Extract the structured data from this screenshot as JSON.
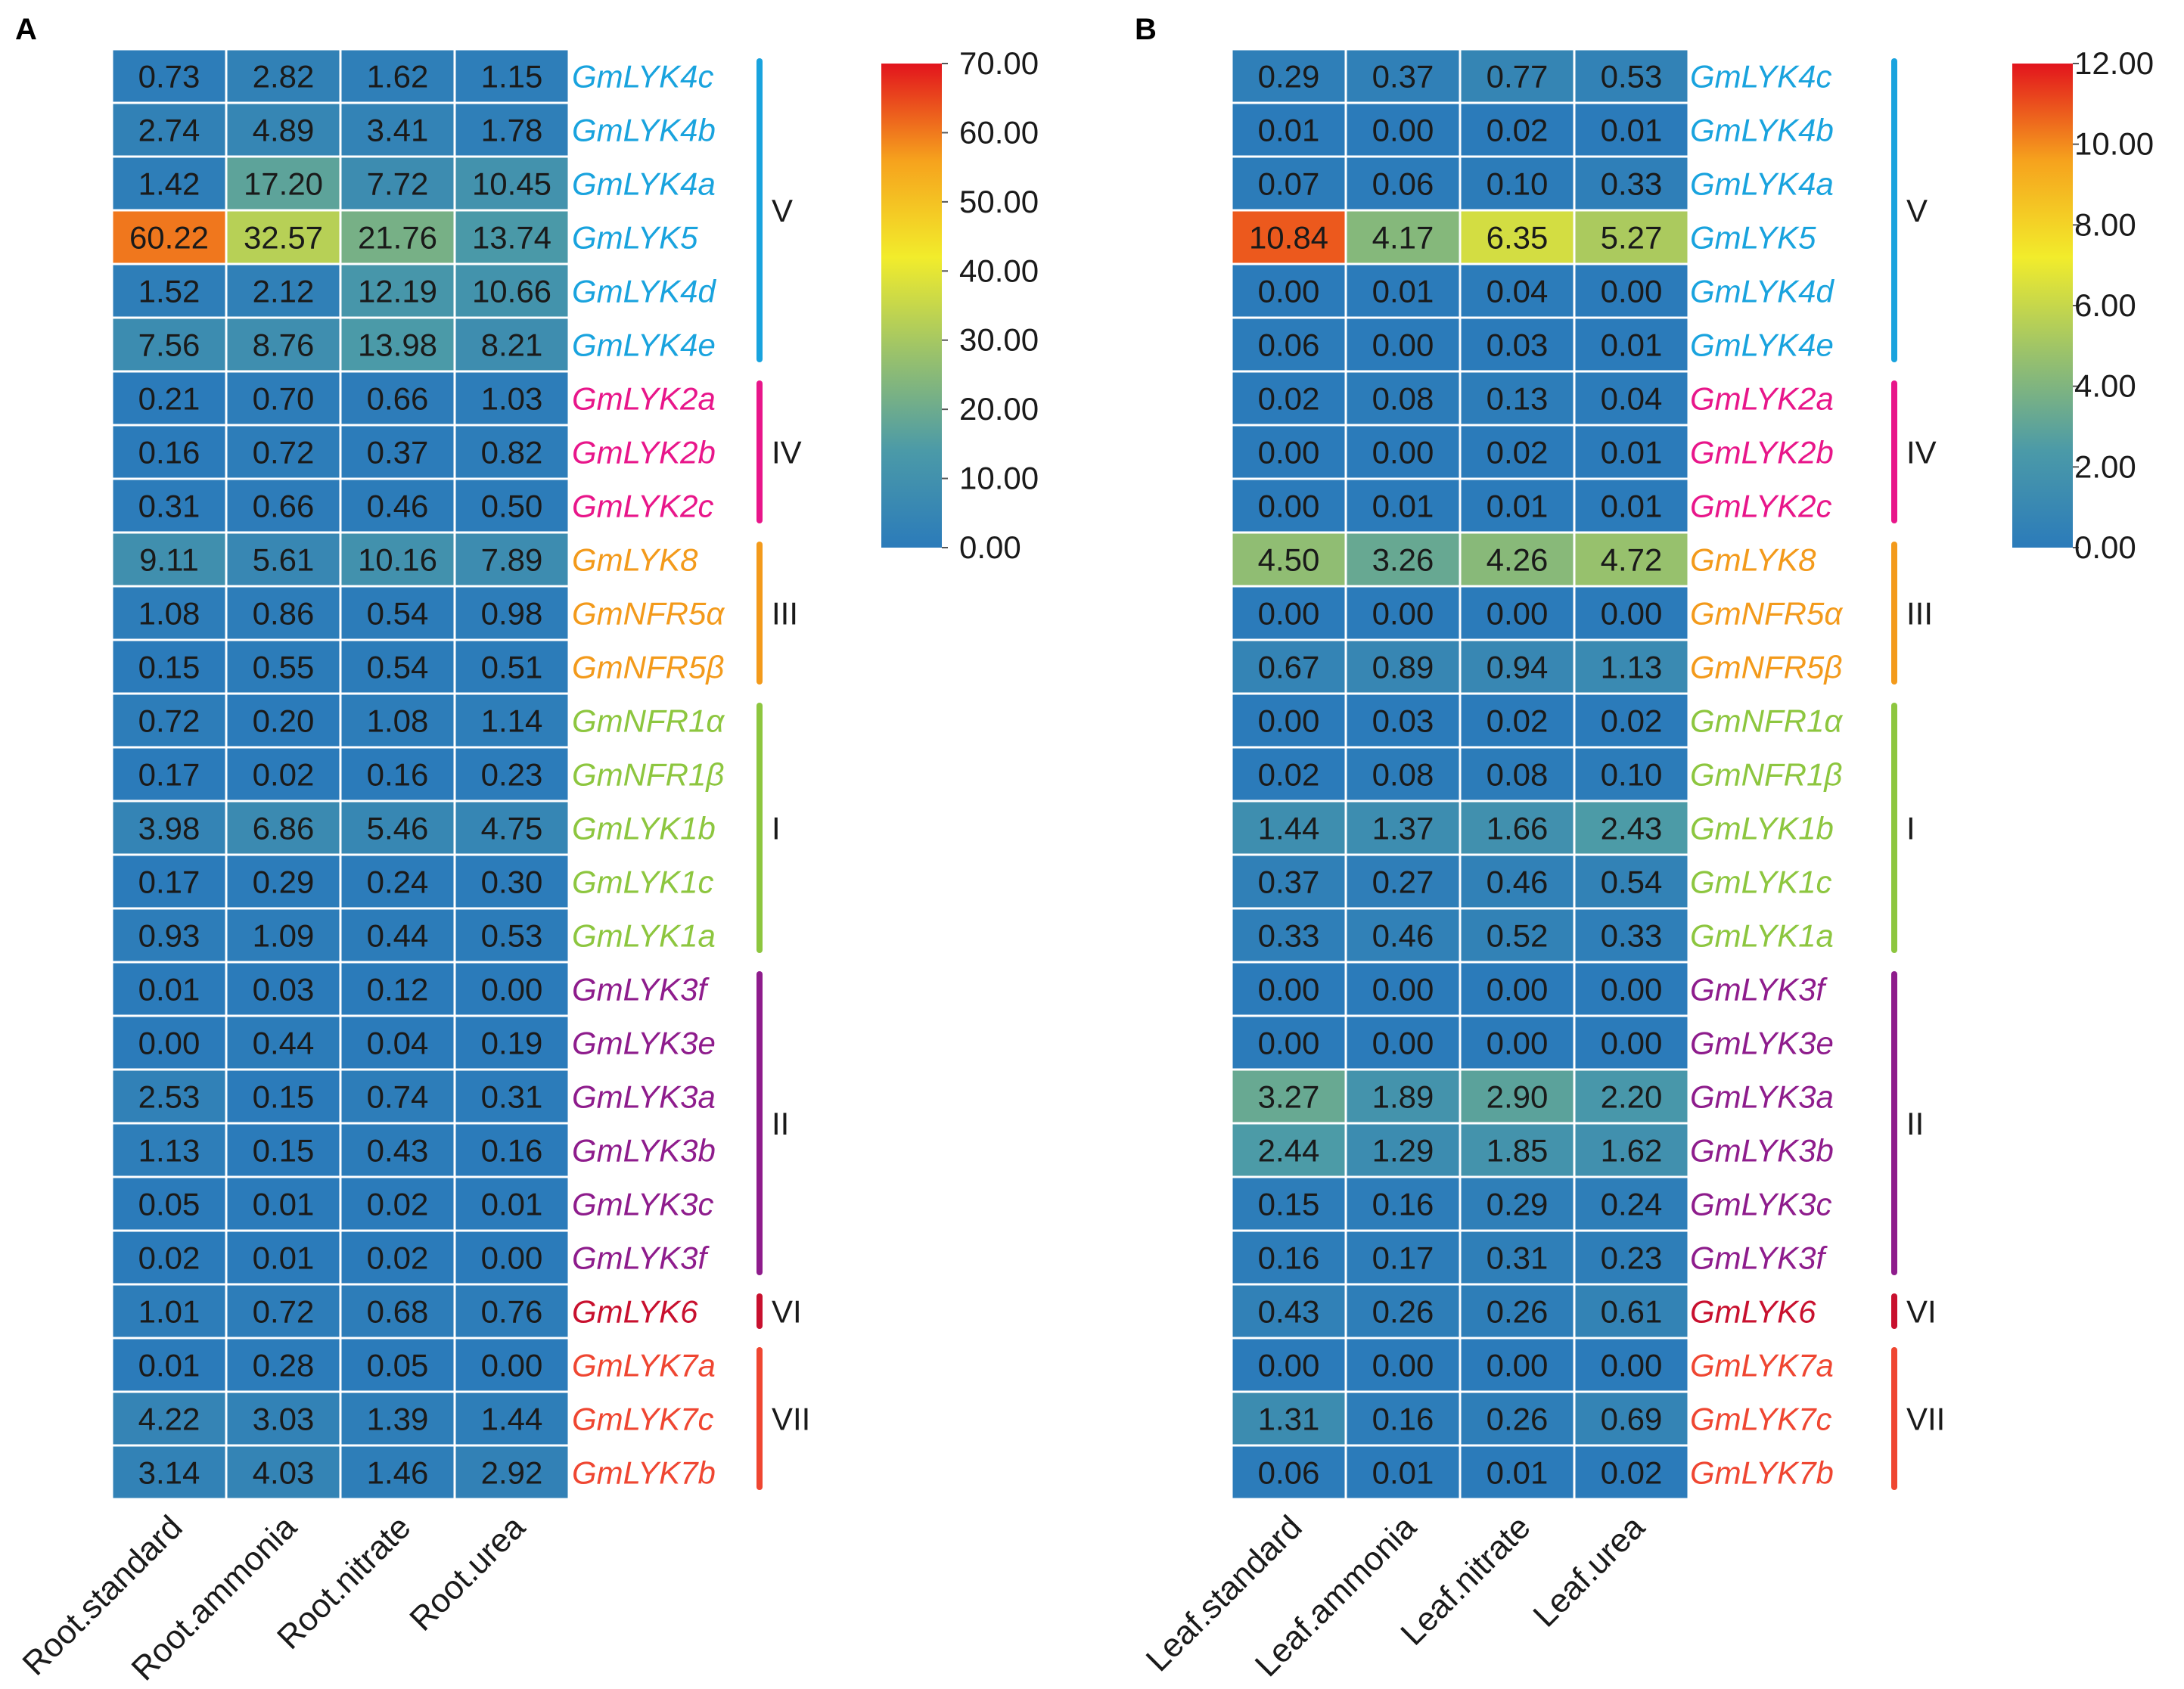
{
  "chart_data": [
    {
      "type": "heatmap",
      "panel_label": "A",
      "columns": [
        "Root.standard",
        "Root.ammonia",
        "Root.nitrate",
        "Root.urea"
      ],
      "rows": [
        {
          "gene": "GmLYK4c",
          "clade": "V",
          "values": [
            0.73,
            2.82,
            1.62,
            1.15
          ],
          "labels": [
            "0.73",
            "2.82",
            "1.62",
            "1.15"
          ]
        },
        {
          "gene": "GmLYK4b",
          "clade": "V",
          "values": [
            2.74,
            4.89,
            3.41,
            1.78
          ],
          "labels": [
            "2.74",
            "4.89",
            "3.41",
            "1.78"
          ]
        },
        {
          "gene": "GmLYK4a",
          "clade": "V",
          "values": [
            1.42,
            17.2,
            7.72,
            10.45
          ],
          "labels": [
            "1.42",
            "17.20",
            "7.72",
            "10.45"
          ]
        },
        {
          "gene": "GmLYK5",
          "clade": "V",
          "values": [
            60.22,
            32.57,
            21.76,
            13.74
          ],
          "labels": [
            "60.22",
            "32.57",
            "21.76",
            "13.74"
          ]
        },
        {
          "gene": "GmLYK4d",
          "clade": "V",
          "values": [
            1.52,
            2.12,
            12.19,
            10.66
          ],
          "labels": [
            "1.52",
            "2.12",
            "12.19",
            "10.66"
          ]
        },
        {
          "gene": "GmLYK4e",
          "clade": "V",
          "values": [
            7.56,
            8.76,
            13.98,
            8.21
          ],
          "labels": [
            "7.56",
            "8.76",
            "13.98",
            "8.21"
          ]
        },
        {
          "gene": "GmLYK2a",
          "clade": "IV",
          "values": [
            0.21,
            0.7,
            0.66,
            1.03
          ],
          "labels": [
            "0.21",
            "0.70",
            "0.66",
            "1.03"
          ]
        },
        {
          "gene": "GmLYK2b",
          "clade": "IV",
          "values": [
            0.16,
            0.72,
            0.37,
            0.82
          ],
          "labels": [
            "0.16",
            "0.72",
            "0.37",
            "0.82"
          ]
        },
        {
          "gene": "GmLYK2c",
          "clade": "IV",
          "values": [
            0.31,
            0.66,
            0.46,
            0.5
          ],
          "labels": [
            "0.31",
            "0.66",
            "0.46",
            "0.50"
          ]
        },
        {
          "gene": "GmLYK8",
          "clade": "III",
          "values": [
            9.11,
            5.61,
            10.16,
            7.89
          ],
          "labels": [
            "9.11",
            "5.61",
            "10.16",
            "7.89"
          ]
        },
        {
          "gene": "GmNFR5α",
          "clade": "III",
          "values": [
            1.08,
            0.86,
            0.54,
            0.98
          ],
          "labels": [
            "1.08",
            "0.86",
            "0.54",
            "0.98"
          ]
        },
        {
          "gene": "GmNFR5β",
          "clade": "III",
          "values": [
            0.15,
            0.55,
            0.54,
            0.51
          ],
          "labels": [
            "0.15",
            "0.55",
            "0.54",
            "0.51"
          ]
        },
        {
          "gene": "GmNFR1α",
          "clade": "I",
          "values": [
            0.72,
            0.2,
            1.08,
            1.14
          ],
          "labels": [
            "0.72",
            "0.20",
            "1.08",
            "1.14"
          ]
        },
        {
          "gene": "GmNFR1β",
          "clade": "I",
          "values": [
            0.17,
            0.02,
            0.16,
            0.23
          ],
          "labels": [
            "0.17",
            "0.02",
            "0.16",
            "0.23"
          ]
        },
        {
          "gene": "GmLYK1b",
          "clade": "I",
          "values": [
            3.98,
            6.86,
            5.46,
            4.75
          ],
          "labels": [
            "3.98",
            "6.86",
            "5.46",
            "4.75"
          ]
        },
        {
          "gene": "GmLYK1c",
          "clade": "I",
          "values": [
            0.17,
            0.29,
            0.24,
            0.3
          ],
          "labels": [
            "0.17",
            "0.29",
            "0.24",
            "0.30"
          ]
        },
        {
          "gene": "GmLYK1a",
          "clade": "I",
          "values": [
            0.93,
            1.09,
            0.44,
            0.53
          ],
          "labels": [
            "0.93",
            "1.09",
            "0.44",
            "0.53"
          ]
        },
        {
          "gene": "GmLYK3f",
          "clade": "II",
          "values": [
            0.01,
            0.03,
            0.12,
            0.0
          ],
          "labels": [
            "0.01",
            "0.03",
            "0.12",
            "0.00"
          ]
        },
        {
          "gene": "GmLYK3e",
          "clade": "II",
          "values": [
            0.0,
            0.44,
            0.04,
            0.19
          ],
          "labels": [
            "0.00",
            "0.44",
            "0.04",
            "0.19"
          ]
        },
        {
          "gene": "GmLYK3a",
          "clade": "II",
          "values": [
            2.53,
            0.15,
            0.74,
            0.31
          ],
          "labels": [
            "2.53",
            "0.15",
            "0.74",
            "0.31"
          ]
        },
        {
          "gene": "GmLYK3b",
          "clade": "II",
          "values": [
            1.13,
            0.15,
            0.43,
            0.16
          ],
          "labels": [
            "1.13",
            "0.15",
            "0.43",
            "0.16"
          ]
        },
        {
          "gene": "GmLYK3c",
          "clade": "II",
          "values": [
            0.05,
            0.01,
            0.02,
            0.01
          ],
          "labels": [
            "0.05",
            "0.01",
            "0.02",
            "0.01"
          ]
        },
        {
          "gene": "GmLYK3f",
          "clade": "II",
          "values": [
            0.02,
            0.01,
            0.02,
            0.0
          ],
          "labels": [
            "0.02",
            "0.01",
            "0.02",
            "0.00"
          ]
        },
        {
          "gene": "GmLYK6",
          "clade": "VI",
          "values": [
            1.01,
            0.72,
            0.68,
            0.76
          ],
          "labels": [
            "1.01",
            "0.72",
            "0.68",
            "0.76"
          ]
        },
        {
          "gene": "GmLYK7a",
          "clade": "VII",
          "values": [
            0.01,
            0.28,
            0.05,
            0.0
          ],
          "labels": [
            "0.01",
            "0.28",
            "0.05",
            "0.00"
          ]
        },
        {
          "gene": "GmLYK7c",
          "clade": "VII",
          "values": [
            4.22,
            3.03,
            1.39,
            1.44
          ],
          "labels": [
            "4.22",
            "3.03",
            "1.39",
            "1.44"
          ]
        },
        {
          "gene": "GmLYK7b",
          "clade": "VII",
          "values": [
            3.14,
            4.03,
            1.46,
            2.92
          ],
          "labels": [
            "3.14",
            "4.03",
            "1.46",
            "2.92"
          ]
        }
      ],
      "clades": [
        {
          "name": "V",
          "color": "#19a3de"
        },
        {
          "name": "IV",
          "color": "#e8168a"
        },
        {
          "name": "III",
          "color": "#f39a1b"
        },
        {
          "name": "I",
          "color": "#8dc63f"
        },
        {
          "name": "II",
          "color": "#8e1c8c"
        },
        {
          "name": "VI",
          "color": "#c8102e"
        },
        {
          "name": "VII",
          "color": "#ef4631"
        }
      ],
      "colorbar": {
        "min": 0,
        "max": 70,
        "ticks": [
          "70.00",
          "60.00",
          "50.00",
          "40.00",
          "30.00",
          "20.00",
          "10.00",
          "0.00"
        ]
      }
    },
    {
      "type": "heatmap",
      "panel_label": "B",
      "columns": [
        "Leaf.standard",
        "Leaf.ammonia",
        "Leaf.nitrate",
        "Leaf.urea"
      ],
      "rows": [
        {
          "gene": "GmLYK4c",
          "clade": "V",
          "values": [
            0.29,
            0.37,
            0.77,
            0.53
          ],
          "labels": [
            "0.29",
            "0.37",
            "0.77",
            "0.53"
          ]
        },
        {
          "gene": "GmLYK4b",
          "clade": "V",
          "values": [
            0.01,
            0.0,
            0.02,
            0.01
          ],
          "labels": [
            "0.01",
            "0.00",
            "0.02",
            "0.01"
          ]
        },
        {
          "gene": "GmLYK4a",
          "clade": "V",
          "values": [
            0.07,
            0.06,
            0.1,
            0.33
          ],
          "labels": [
            "0.07",
            "0.06",
            "0.10",
            "0.33"
          ]
        },
        {
          "gene": "GmLYK5",
          "clade": "V",
          "values": [
            10.84,
            4.17,
            6.35,
            5.27
          ],
          "labels": [
            "10.84",
            "4.17",
            "6.35",
            "5.27"
          ]
        },
        {
          "gene": "GmLYK4d",
          "clade": "V",
          "values": [
            0.0,
            0.01,
            0.04,
            0.0
          ],
          "labels": [
            "0.00",
            "0.01",
            "0.04",
            "0.00"
          ]
        },
        {
          "gene": "GmLYK4e",
          "clade": "V",
          "values": [
            0.06,
            0.0,
            0.03,
            0.01
          ],
          "labels": [
            "0.06",
            "0.00",
            "0.03",
            "0.01"
          ]
        },
        {
          "gene": "GmLYK2a",
          "clade": "IV",
          "values": [
            0.02,
            0.08,
            0.13,
            0.04
          ],
          "labels": [
            "0.02",
            "0.08",
            "0.13",
            "0.04"
          ]
        },
        {
          "gene": "GmLYK2b",
          "clade": "IV",
          "values": [
            0.0,
            0.0,
            0.02,
            0.01
          ],
          "labels": [
            "0.00",
            "0.00",
            "0.02",
            "0.01"
          ]
        },
        {
          "gene": "GmLYK2c",
          "clade": "IV",
          "values": [
            0.0,
            0.01,
            0.01,
            0.01
          ],
          "labels": [
            "0.00",
            "0.01",
            "0.01",
            "0.01"
          ]
        },
        {
          "gene": "GmLYK8",
          "clade": "III",
          "values": [
            4.5,
            3.26,
            4.26,
            4.72
          ],
          "labels": [
            "4.50",
            "3.26",
            "4.26",
            "4.72"
          ]
        },
        {
          "gene": "GmNFR5α",
          "clade": "III",
          "values": [
            0.0,
            0.0,
            0.0,
            0.0
          ],
          "labels": [
            "0.00",
            "0.00",
            "0.00",
            "0.00"
          ]
        },
        {
          "gene": "GmNFR5β",
          "clade": "III",
          "values": [
            0.67,
            0.89,
            0.94,
            1.13
          ],
          "labels": [
            "0.67",
            "0.89",
            "0.94",
            "1.13"
          ]
        },
        {
          "gene": "GmNFR1α",
          "clade": "I",
          "values": [
            0.0,
            0.03,
            0.02,
            0.02
          ],
          "labels": [
            "0.00",
            "0.03",
            "0.02",
            "0.02"
          ]
        },
        {
          "gene": "GmNFR1β",
          "clade": "I",
          "values": [
            0.02,
            0.08,
            0.08,
            0.1
          ],
          "labels": [
            "0.02",
            "0.08",
            "0.08",
            "0.10"
          ]
        },
        {
          "gene": "GmLYK1b",
          "clade": "I",
          "values": [
            1.44,
            1.37,
            1.66,
            2.43
          ],
          "labels": [
            "1.44",
            "1.37",
            "1.66",
            "2.43"
          ]
        },
        {
          "gene": "GmLYK1c",
          "clade": "I",
          "values": [
            0.37,
            0.27,
            0.46,
            0.54
          ],
          "labels": [
            "0.37",
            "0.27",
            "0.46",
            "0.54"
          ]
        },
        {
          "gene": "GmLYK1a",
          "clade": "I",
          "values": [
            0.33,
            0.46,
            0.52,
            0.33
          ],
          "labels": [
            "0.33",
            "0.46",
            "0.52",
            "0.33"
          ]
        },
        {
          "gene": "GmLYK3f",
          "clade": "II",
          "values": [
            0.0,
            0.0,
            0.0,
            0.0
          ],
          "labels": [
            "0.00",
            "0.00",
            "0.00",
            "0.00"
          ]
        },
        {
          "gene": "GmLYK3e",
          "clade": "II",
          "values": [
            0.0,
            0.0,
            0.0,
            0.0
          ],
          "labels": [
            "0.00",
            "0.00",
            "0.00",
            "0.00"
          ]
        },
        {
          "gene": "GmLYK3a",
          "clade": "II",
          "values": [
            3.27,
            1.89,
            2.9,
            2.2
          ],
          "labels": [
            "3.27",
            "1.89",
            "2.90",
            "2.20"
          ]
        },
        {
          "gene": "GmLYK3b",
          "clade": "II",
          "values": [
            2.44,
            1.29,
            1.85,
            1.62
          ],
          "labels": [
            "2.44",
            "1.29",
            "1.85",
            "1.62"
          ]
        },
        {
          "gene": "GmLYK3c",
          "clade": "II",
          "values": [
            0.15,
            0.16,
            0.29,
            0.24
          ],
          "labels": [
            "0.15",
            "0.16",
            "0.29",
            "0.24"
          ]
        },
        {
          "gene": "GmLYK3f",
          "clade": "II",
          "values": [
            0.16,
            0.17,
            0.31,
            0.23
          ],
          "labels": [
            "0.16",
            "0.17",
            "0.31",
            "0.23"
          ]
        },
        {
          "gene": "GmLYK6",
          "clade": "VI",
          "values": [
            0.43,
            0.26,
            0.26,
            0.61
          ],
          "labels": [
            "0.43",
            "0.26",
            "0.26",
            "0.61"
          ]
        },
        {
          "gene": "GmLYK7a",
          "clade": "VII",
          "values": [
            0.0,
            0.0,
            0.0,
            0.0
          ],
          "labels": [
            "0.00",
            "0.00",
            "0.00",
            "0.00"
          ]
        },
        {
          "gene": "GmLYK7c",
          "clade": "VII",
          "values": [
            1.31,
            0.16,
            0.26,
            0.69
          ],
          "labels": [
            "1.31",
            "0.16",
            "0.26",
            "0.69"
          ]
        },
        {
          "gene": "GmLYK7b",
          "clade": "VII",
          "values": [
            0.06,
            0.01,
            0.01,
            0.02
          ],
          "labels": [
            "0.06",
            "0.01",
            "0.01",
            "0.02"
          ]
        }
      ],
      "clades": [
        {
          "name": "V",
          "color": "#19a3de"
        },
        {
          "name": "IV",
          "color": "#e8168a"
        },
        {
          "name": "III",
          "color": "#f39a1b"
        },
        {
          "name": "I",
          "color": "#8dc63f"
        },
        {
          "name": "II",
          "color": "#8e1c8c"
        },
        {
          "name": "VI",
          "color": "#c8102e"
        },
        {
          "name": "VII",
          "color": "#ef4631"
        }
      ],
      "colorbar": {
        "min": 0,
        "max": 12,
        "ticks": [
          "12.00",
          "10.00",
          "8.00",
          "6.00",
          "4.00",
          "2.00",
          "0.00"
        ]
      }
    }
  ],
  "colormap": [
    "#2b7bba",
    "#4b9aa8",
    "#9ac26b",
    "#f2ec2b",
    "#f6a21d",
    "#e2141d"
  ]
}
